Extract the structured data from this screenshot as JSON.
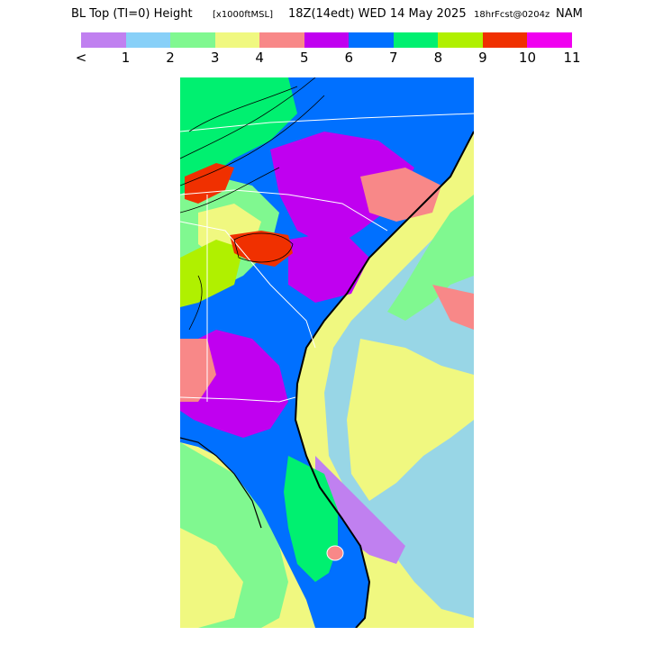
{
  "title": {
    "main": "BL Top (TI=0) Height",
    "units": "[x1000ftMSL]",
    "valid": "18Z(14edt) WED 14 May 2025",
    "forecast": "18hrFcst@0204z",
    "model": "NAM"
  },
  "legend": {
    "colors": [
      "#c080f0",
      "#88d0f8",
      "#80f890",
      "#f0f880",
      "#f88888",
      "#c000f0",
      "#0070ff",
      "#00f070",
      "#b0f000",
      "#f03000",
      "#f000f0"
    ],
    "labels": [
      "<",
      "1",
      "2",
      "3",
      "4",
      "5",
      "6",
      "7",
      "8",
      "9",
      "10",
      "11"
    ]
  },
  "map": {
    "region": "Southeastern United States",
    "ocean_color": "#f0f880",
    "state_border_color": "#ffffff",
    "coast_color": "#000000"
  }
}
